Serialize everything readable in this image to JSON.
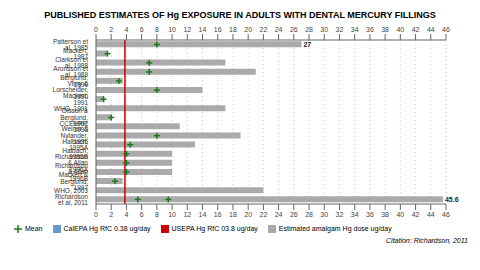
{
  "chart_data": {
    "type": "bar",
    "orientation": "horizontal",
    "title": "PUBLISHED ESTIMATES OF Hg EXPOSURE IN ADULTS WITH DENTAL MERCURY FILLINGS",
    "categories": [
      "Patterson et al, 1985",
      "Mackert, 1987",
      "Clarkson et al, 1988",
      "Aronsson et al, 1989",
      "Berglund, 1990",
      "Vimy & Lorscheider, 1990",
      "Mackert, 1991",
      "WHO, 1991",
      "Olsson & Berglund, 1992",
      "CCEHRP, 1993",
      "Weiner & Nylander, 1995",
      "Halbach, 1995A",
      "Halbach, 1995B",
      "Richardson & Allan 1996A",
      "Richardson & Allan 1996B",
      "Mackert & Berglund, 1997",
      "WHO, 2003",
      "Richardson et al, 2011"
    ],
    "series": [
      {
        "name": "Mean",
        "type": "scatter",
        "marker": "plus",
        "color": "#1a7a1a",
        "values": [
          8.0,
          1.5,
          7.0,
          7.0,
          3.0,
          8.0,
          1.0,
          null,
          2.0,
          null,
          8.0,
          4.5,
          4.0,
          4.0,
          4.0,
          2.5,
          null,
          5.5
        ]
      },
      {
        "name": "Mean",
        "type": "scatter",
        "marker": "plus",
        "color": "#1a7a1a",
        "values": [
          null,
          null,
          null,
          null,
          null,
          null,
          null,
          null,
          null,
          null,
          null,
          null,
          null,
          null,
          null,
          null,
          null,
          9.5
        ]
      },
      {
        "name": "CalEPA Hg RfC 0.38 ug/day",
        "type": "line",
        "color": "#6699cc",
        "values": [
          null,
          null,
          null,
          null,
          null,
          null,
          null,
          null,
          null,
          null,
          null,
          null,
          null,
          null,
          null,
          null,
          null,
          null
        ]
      },
      {
        "name": "Estimated amalgam Hg dose ug/day",
        "type": "bar",
        "color": "#aaaaaa",
        "values": [
          27,
          1.5,
          17,
          21,
          3.5,
          14,
          1.0,
          17,
          2.0,
          11,
          19,
          13,
          10,
          10,
          10,
          3.5,
          22,
          45.6
        ]
      }
    ],
    "reference_lines": [
      {
        "name": "USEPA Hg RfC 03.8 ug/day",
        "value": 3.8,
        "color": "#cc0000"
      }
    ],
    "annotations": [
      {
        "text": "27",
        "category": "Patterson et al, 1985"
      },
      {
        "text": "45.6",
        "category": "Richardson et al, 2011"
      }
    ],
    "citation": "Citation: Richardson, 2011",
    "xlim": [
      0,
      46
    ],
    "xticks": [
      0,
      2,
      4,
      6,
      8,
      10,
      12,
      14,
      16,
      18,
      20,
      22,
      24,
      26,
      28,
      30,
      32,
      34,
      36,
      38,
      40,
      42,
      44,
      46
    ],
    "grid": true
  }
}
